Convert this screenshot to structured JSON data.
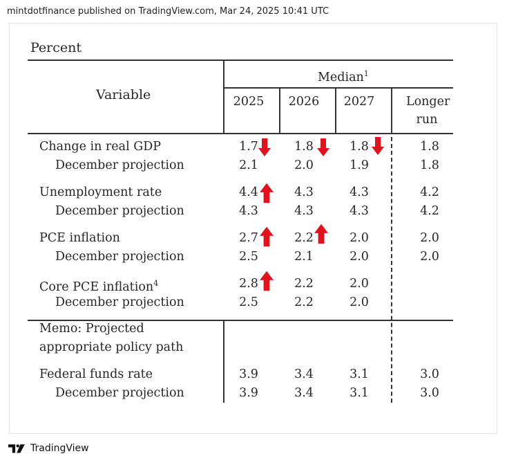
{
  "header": {
    "publisher_line": "mintdotfinance published on TradingView.com, Mar 24, 2025 10:41 UTC"
  },
  "table": {
    "units_label": "Percent",
    "variable_header": "Variable",
    "median_header": "Median",
    "median_sup": "1",
    "columns": [
      "2025",
      "2026",
      "2027"
    ],
    "longer_run_line1": "Longer",
    "longer_run_line2": "run",
    "rows": [
      {
        "label": "Change in real GDP",
        "sup": "",
        "values": [
          "1.7",
          "1.8",
          "1.8"
        ],
        "longer": "1.8"
      },
      {
        "label": "December projection",
        "sup": "",
        "values": [
          "2.1",
          "2.0",
          "1.9"
        ],
        "longer": "1.8"
      },
      {
        "label": "Unemployment rate",
        "sup": "",
        "values": [
          "4.4",
          "4.3",
          "4.3"
        ],
        "longer": "4.2"
      },
      {
        "label": "December projection",
        "sup": "",
        "values": [
          "4.3",
          "4.3",
          "4.3"
        ],
        "longer": "4.2"
      },
      {
        "label": "PCE inflation",
        "sup": "",
        "values": [
          "2.7",
          "2.2",
          "2.0"
        ],
        "longer": "2.0"
      },
      {
        "label": "December projection",
        "sup": "",
        "values": [
          "2.5",
          "2.1",
          "2.0"
        ],
        "longer": "2.0"
      },
      {
        "label": "Core PCE inflation",
        "sup": "4",
        "values": [
          "2.8",
          "2.2",
          "2.0"
        ],
        "longer": ""
      },
      {
        "label": "December projection",
        "sup": "",
        "values": [
          "2.5",
          "2.2",
          "2.0"
        ],
        "longer": ""
      }
    ],
    "memo_line1": "Memo: Projected",
    "memo_line2": "appropriate policy path",
    "fed_rows": [
      {
        "label": "Federal funds rate",
        "values": [
          "3.9",
          "3.4",
          "3.1"
        ],
        "longer": "3.0"
      },
      {
        "label": "December projection",
        "values": [
          "3.9",
          "3.4",
          "3.1"
        ],
        "longer": "3.0"
      }
    ],
    "arrow_color": "#e3111b"
  },
  "footer": {
    "brand": "TradingView",
    "logo_icon": "tradingview-logo-icon"
  }
}
